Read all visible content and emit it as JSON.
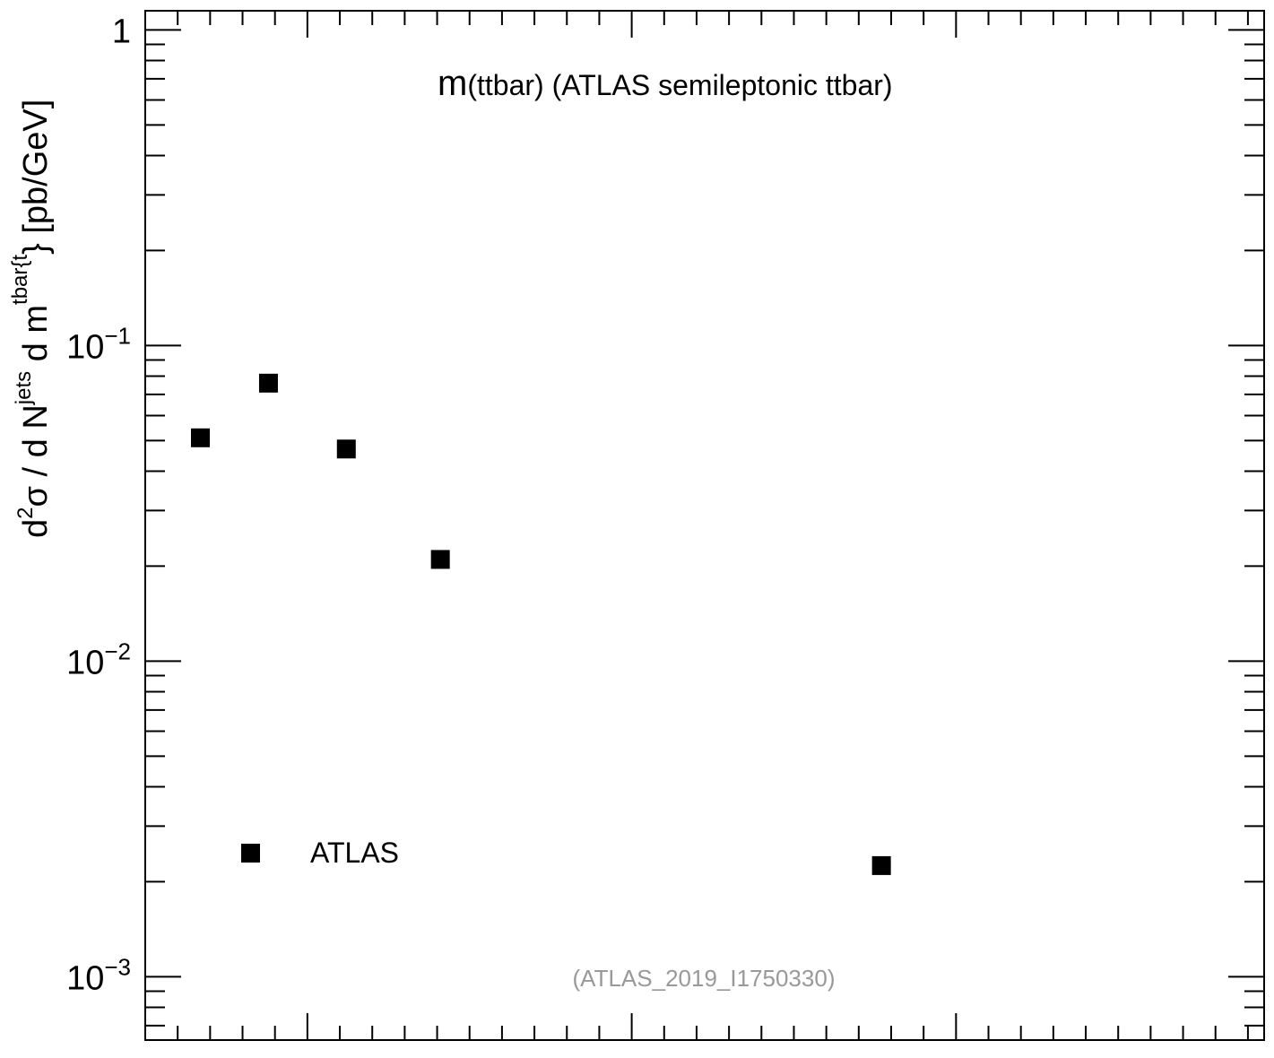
{
  "chart_data": {
    "type": "scatter",
    "title": "(ttbar) (ATLAS semileptonic ttbar)",
    "title_prefix": "m",
    "xlabel": "",
    "ylabel": "d²σ / d N^jets d m^tbar{t} [pb/GeV]",
    "ylabel_parts": {
      "a": "d",
      "a_sup": "2",
      "b": "σ /  d N",
      "b_sup": "jets",
      "c": " d m",
      "c_sup": "tbar{t",
      "d": "} [pb/GeV]"
    },
    "y_scale": "log",
    "ylim": [
      0.00063,
      1.15
    ],
    "xlim": [
      0,
      3.45
    ],
    "y_ticks": [
      {
        "value": 1,
        "base": "1",
        "exp": ""
      },
      {
        "value": 0.1,
        "base": "10",
        "exp": "−1"
      },
      {
        "value": 0.01,
        "base": "10",
        "exp": "−2"
      },
      {
        "value": 0.001,
        "base": "10",
        "exp": "−3"
      }
    ],
    "x_major_ticks": [
      0.5,
      1.5,
      2.5,
      3.5
    ],
    "grid": false,
    "series": [
      {
        "name": "ATLAS",
        "color": "#000000",
        "marker": "square",
        "points": [
          {
            "x": 0.17,
            "y": 0.051
          },
          {
            "x": 0.38,
            "y": 0.076
          },
          {
            "x": 0.62,
            "y": 0.047
          },
          {
            "x": 0.91,
            "y": 0.021
          },
          {
            "x": 2.27,
            "y": 0.00225
          }
        ]
      }
    ],
    "legend_position": "bottom-left",
    "annotation": "(ATLAS_2019_I1750330)"
  }
}
